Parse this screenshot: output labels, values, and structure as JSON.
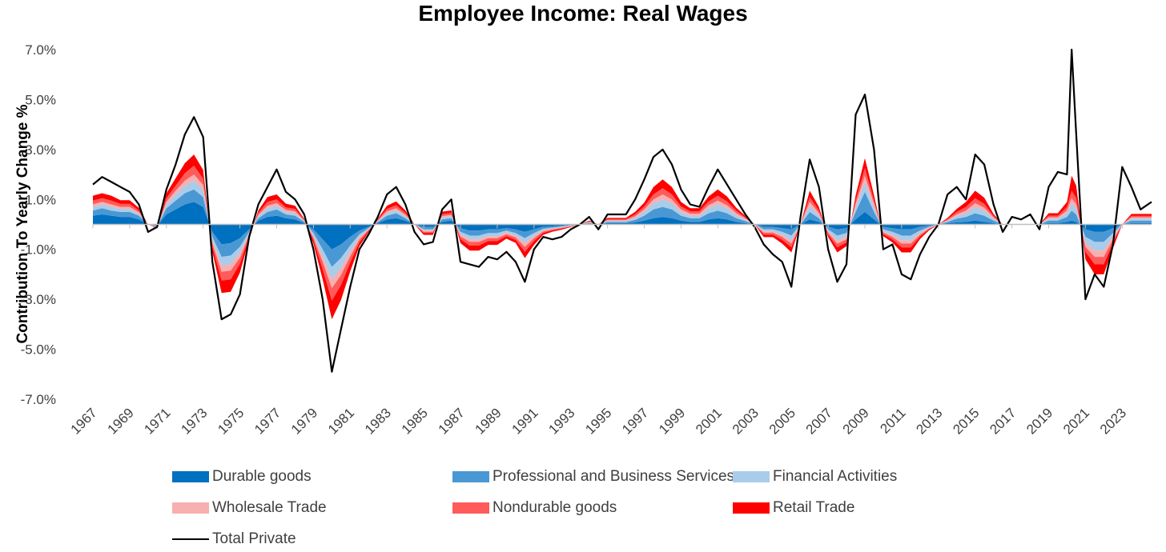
{
  "chart_data": {
    "type": "area",
    "title": "Employee Income: Real Wages",
    "xlabel": "",
    "ylabel": "Contribution To Yearly Change %",
    "ylim": [
      -7.0,
      7.0
    ],
    "y_ticks": [
      "7.0%",
      "5.0%",
      "3.0%",
      "1.0%",
      "-1.0%",
      "-3.0%",
      "-5.0%",
      "-7.0%"
    ],
    "y_tick_values": [
      7,
      5,
      3,
      1,
      -1,
      -3,
      -5,
      -7
    ],
    "x_ticks": [
      "1967",
      "1969",
      "1971",
      "1973",
      "1975",
      "1977",
      "1979",
      "1981",
      "1983",
      "1985",
      "1987",
      "1989",
      "1991",
      "1993",
      "1995",
      "1997",
      "1999",
      "2001",
      "2003",
      "2005",
      "2007",
      "2009",
      "2011",
      "2013",
      "2015",
      "2017",
      "2019",
      "2021",
      "2023"
    ],
    "x_range": [
      1967.0,
      2024.6
    ],
    "legend_placement": "bottom",
    "grid": false,
    "x": [
      1967.0,
      1967.5,
      1968.0,
      1968.5,
      1969.0,
      1969.5,
      1970.0,
      1970.5,
      1971.0,
      1971.5,
      1972.0,
      1972.5,
      1973.0,
      1973.5,
      1974.0,
      1974.5,
      1975.0,
      1975.5,
      1976.0,
      1976.5,
      1977.0,
      1977.5,
      1978.0,
      1978.5,
      1979.0,
      1979.5,
      1980.0,
      1980.5,
      1981.0,
      1981.5,
      1982.0,
      1982.5,
      1983.0,
      1983.5,
      1984.0,
      1984.5,
      1985.0,
      1985.5,
      1986.0,
      1986.5,
      1987.0,
      1987.5,
      1988.0,
      1988.5,
      1989.0,
      1989.5,
      1990.0,
      1990.5,
      1991.0,
      1991.5,
      1992.0,
      1992.5,
      1993.0,
      1993.5,
      1994.0,
      1994.5,
      1995.0,
      1995.5,
      1996.0,
      1996.5,
      1997.0,
      1997.5,
      1998.0,
      1998.5,
      1999.0,
      1999.5,
      2000.0,
      2000.5,
      2001.0,
      2001.5,
      2002.0,
      2002.5,
      2003.0,
      2003.5,
      2004.0,
      2004.5,
      2005.0,
      2005.5,
      2006.0,
      2006.5,
      2007.0,
      2007.5,
      2008.0,
      2008.5,
      2009.0,
      2009.5,
      2010.0,
      2010.5,
      2011.0,
      2011.5,
      2012.0,
      2012.5,
      2013.0,
      2013.5,
      2014.0,
      2014.5,
      2015.0,
      2015.5,
      2016.0,
      2016.5,
      2017.0,
      2017.5,
      2018.0,
      2018.5,
      2019.0,
      2019.5,
      2020.0,
      2020.25,
      2020.5,
      2021.0,
      2021.5,
      2022.0,
      2022.5,
      2023.0,
      2023.5,
      2024.0,
      2024.6
    ],
    "series": [
      {
        "name": "Durable goods",
        "color": "#0070C0",
        "values": [
          0.35,
          0.4,
          0.35,
          0.3,
          0.3,
          0.2,
          0.0,
          -0.05,
          0.4,
          0.6,
          0.8,
          0.9,
          0.7,
          -0.3,
          -0.8,
          -0.75,
          -0.55,
          -0.2,
          0.15,
          0.3,
          0.35,
          0.25,
          0.2,
          0.05,
          -0.2,
          -0.6,
          -1.0,
          -0.8,
          -0.5,
          -0.25,
          -0.1,
          0.05,
          0.2,
          0.25,
          0.15,
          0.0,
          -0.1,
          -0.1,
          0.1,
          0.15,
          -0.15,
          -0.25,
          -0.25,
          -0.2,
          -0.2,
          -0.15,
          -0.2,
          -0.3,
          -0.2,
          -0.1,
          -0.08,
          -0.05,
          -0.02,
          0.0,
          0.03,
          0.0,
          0.05,
          0.05,
          0.05,
          0.08,
          0.15,
          0.25,
          0.3,
          0.25,
          0.15,
          0.1,
          0.1,
          0.2,
          0.25,
          0.2,
          0.1,
          0.05,
          0.0,
          -0.1,
          -0.1,
          -0.15,
          -0.2,
          0.0,
          0.2,
          0.1,
          -0.1,
          -0.2,
          -0.15,
          0.2,
          0.5,
          0.2,
          -0.1,
          -0.15,
          -0.2,
          -0.2,
          -0.1,
          -0.05,
          0.0,
          0.05,
          0.08,
          0.1,
          0.15,
          0.1,
          0.05,
          0.0,
          0.0,
          0.0,
          0.0,
          0.0,
          0.05,
          0.05,
          0.1,
          0.15,
          0.1,
          -0.2,
          -0.3,
          -0.3,
          -0.15,
          0.0,
          0.05,
          0.05,
          0.05
        ]
      },
      {
        "name": "Professional and Business Services",
        "color": "#4A98D3",
        "values": [
          0.2,
          0.25,
          0.2,
          0.2,
          0.2,
          0.15,
          0.0,
          -0.03,
          0.25,
          0.35,
          0.45,
          0.5,
          0.4,
          -0.2,
          -0.5,
          -0.5,
          -0.35,
          -0.1,
          0.1,
          0.2,
          0.25,
          0.15,
          0.15,
          0.05,
          -0.15,
          -0.4,
          -0.7,
          -0.55,
          -0.35,
          -0.15,
          -0.05,
          0.05,
          0.15,
          0.2,
          0.1,
          0.0,
          -0.1,
          -0.1,
          0.1,
          0.1,
          -0.15,
          -0.2,
          -0.2,
          -0.15,
          -0.15,
          -0.1,
          -0.15,
          -0.25,
          -0.15,
          -0.08,
          -0.05,
          -0.04,
          -0.02,
          0.0,
          0.03,
          0.0,
          0.05,
          0.05,
          0.05,
          0.1,
          0.2,
          0.35,
          0.4,
          0.35,
          0.2,
          0.15,
          0.15,
          0.25,
          0.3,
          0.25,
          0.15,
          0.08,
          0.0,
          -0.1,
          -0.1,
          -0.15,
          -0.25,
          0.0,
          0.3,
          0.15,
          -0.1,
          -0.25,
          -0.2,
          0.3,
          0.8,
          0.3,
          -0.1,
          -0.15,
          -0.25,
          -0.25,
          -0.15,
          -0.05,
          0.0,
          0.05,
          0.15,
          0.2,
          0.3,
          0.25,
          0.1,
          0.0,
          0.0,
          0.0,
          0.0,
          0.0,
          0.1,
          0.1,
          0.2,
          0.4,
          0.3,
          -0.3,
          -0.4,
          -0.4,
          -0.2,
          0.0,
          0.1,
          0.1,
          0.1
        ]
      },
      {
        "name": "Financial Activities",
        "color": "#A9CCEA",
        "values": [
          0.15,
          0.15,
          0.15,
          0.12,
          0.12,
          0.08,
          0.0,
          -0.02,
          0.15,
          0.25,
          0.3,
          0.35,
          0.28,
          -0.15,
          -0.35,
          -0.35,
          -0.25,
          -0.08,
          0.08,
          0.15,
          0.15,
          0.1,
          0.1,
          0.03,
          -0.1,
          -0.3,
          -0.5,
          -0.4,
          -0.25,
          -0.12,
          -0.04,
          0.03,
          0.1,
          0.12,
          0.08,
          0.0,
          -0.05,
          -0.05,
          0.08,
          0.08,
          -0.1,
          -0.15,
          -0.15,
          -0.12,
          -0.12,
          -0.08,
          -0.1,
          -0.2,
          -0.12,
          -0.06,
          -0.04,
          -0.03,
          -0.02,
          0.0,
          0.02,
          0.0,
          0.04,
          0.04,
          0.04,
          0.08,
          0.15,
          0.25,
          0.3,
          0.25,
          0.15,
          0.1,
          0.1,
          0.2,
          0.25,
          0.2,
          0.12,
          0.06,
          0.0,
          -0.08,
          -0.08,
          -0.12,
          -0.2,
          0.0,
          0.25,
          0.12,
          -0.08,
          -0.2,
          -0.15,
          0.2,
          0.4,
          0.2,
          -0.08,
          -0.12,
          -0.2,
          -0.2,
          -0.1,
          -0.04,
          0.0,
          0.04,
          0.1,
          0.15,
          0.25,
          0.2,
          0.08,
          0.0,
          0.0,
          0.0,
          0.0,
          0.0,
          0.08,
          0.08,
          0.15,
          0.3,
          0.25,
          -0.25,
          -0.35,
          -0.35,
          -0.15,
          0.0,
          0.08,
          0.08,
          0.08
        ]
      },
      {
        "name": "Wholesale Trade",
        "color": "#F8AFAF",
        "values": [
          0.1,
          0.1,
          0.1,
          0.08,
          0.08,
          0.05,
          0.0,
          -0.02,
          0.1,
          0.15,
          0.2,
          0.25,
          0.2,
          -0.1,
          -0.25,
          -0.25,
          -0.18,
          -0.05,
          0.05,
          0.1,
          0.1,
          0.08,
          0.07,
          0.02,
          -0.08,
          -0.2,
          -0.35,
          -0.28,
          -0.18,
          -0.08,
          -0.03,
          0.02,
          0.07,
          0.08,
          0.05,
          0.0,
          -0.04,
          -0.04,
          0.05,
          0.05,
          -0.08,
          -0.1,
          -0.1,
          -0.08,
          -0.08,
          -0.06,
          -0.07,
          -0.15,
          -0.08,
          -0.04,
          -0.03,
          -0.02,
          -0.01,
          0.0,
          0.02,
          0.0,
          0.03,
          0.03,
          0.03,
          0.06,
          0.1,
          0.15,
          0.2,
          0.15,
          0.1,
          0.08,
          0.08,
          0.12,
          0.15,
          0.12,
          0.08,
          0.04,
          0.0,
          -0.05,
          -0.05,
          -0.08,
          -0.12,
          0.0,
          0.15,
          0.08,
          -0.05,
          -0.12,
          -0.1,
          0.12,
          0.25,
          0.12,
          -0.05,
          -0.08,
          -0.12,
          -0.12,
          -0.06,
          -0.02,
          0.0,
          0.03,
          0.07,
          0.1,
          0.15,
          0.12,
          0.05,
          0.0,
          0.0,
          0.0,
          0.0,
          0.0,
          0.05,
          0.05,
          0.1,
          0.2,
          0.15,
          -0.15,
          -0.25,
          -0.25,
          -0.1,
          0.0,
          0.05,
          0.05,
          0.05
        ]
      },
      {
        "name": "Nondurable goods",
        "color": "#FF5B5B",
        "values": [
          0.15,
          0.15,
          0.15,
          0.12,
          0.12,
          0.08,
          0.0,
          -0.02,
          0.15,
          0.2,
          0.3,
          0.35,
          0.25,
          -0.15,
          -0.35,
          -0.35,
          -0.25,
          -0.08,
          0.08,
          0.15,
          0.15,
          0.1,
          0.1,
          0.03,
          -0.1,
          -0.3,
          -0.5,
          -0.4,
          -0.25,
          -0.12,
          -0.04,
          0.03,
          0.1,
          0.12,
          0.08,
          0.0,
          -0.05,
          -0.05,
          0.08,
          0.08,
          -0.12,
          -0.15,
          -0.15,
          -0.12,
          -0.12,
          -0.08,
          -0.1,
          -0.2,
          -0.12,
          -0.06,
          -0.04,
          -0.03,
          -0.02,
          0.0,
          0.02,
          0.0,
          0.04,
          0.04,
          0.04,
          0.08,
          0.12,
          0.2,
          0.25,
          0.2,
          0.12,
          0.1,
          0.1,
          0.15,
          0.2,
          0.15,
          0.1,
          0.05,
          0.0,
          -0.08,
          -0.08,
          -0.12,
          -0.15,
          0.0,
          0.2,
          0.1,
          -0.08,
          -0.15,
          -0.12,
          0.15,
          0.3,
          0.15,
          -0.06,
          -0.1,
          -0.15,
          -0.15,
          -0.08,
          -0.03,
          0.0,
          0.04,
          0.1,
          0.15,
          0.2,
          0.15,
          0.06,
          0.0,
          0.0,
          0.0,
          0.0,
          0.0,
          0.07,
          0.07,
          0.15,
          0.3,
          0.25,
          -0.2,
          -0.3,
          -0.3,
          -0.15,
          0.0,
          0.06,
          0.06,
          0.06
        ]
      },
      {
        "name": "Retail Trade",
        "color": "#FF0000",
        "values": [
          0.2,
          0.2,
          0.2,
          0.15,
          0.15,
          0.1,
          0.0,
          -0.03,
          0.2,
          0.3,
          0.4,
          0.45,
          0.35,
          -0.2,
          -0.5,
          -0.5,
          -0.35,
          -0.1,
          0.1,
          0.2,
          0.2,
          0.15,
          0.13,
          0.04,
          -0.15,
          -0.4,
          -0.75,
          -0.6,
          -0.35,
          -0.15,
          -0.05,
          0.04,
          0.13,
          0.15,
          0.1,
          0.0,
          -0.08,
          -0.08,
          0.1,
          0.1,
          -0.15,
          -0.2,
          -0.2,
          -0.15,
          -0.15,
          -0.1,
          -0.12,
          -0.25,
          -0.15,
          -0.08,
          -0.05,
          -0.04,
          -0.02,
          0.0,
          0.03,
          0.0,
          0.05,
          0.05,
          0.05,
          0.1,
          0.15,
          0.3,
          0.35,
          0.3,
          0.18,
          0.12,
          0.12,
          0.2,
          0.25,
          0.2,
          0.12,
          0.06,
          0.0,
          -0.1,
          -0.1,
          -0.15,
          -0.2,
          0.0,
          0.25,
          0.15,
          -0.1,
          -0.2,
          -0.15,
          0.2,
          0.4,
          0.2,
          -0.08,
          -0.12,
          -0.2,
          -0.2,
          -0.1,
          -0.04,
          0.0,
          0.05,
          0.12,
          0.2,
          0.3,
          0.25,
          0.08,
          0.0,
          0.0,
          0.0,
          0.0,
          0.0,
          0.1,
          0.1,
          0.2,
          0.6,
          0.5,
          -0.3,
          -0.4,
          -0.4,
          -0.2,
          0.0,
          0.08,
          0.08,
          0.08
        ]
      },
      {
        "name": "Total Private",
        "color": "#000000",
        "values": [
          1.6,
          1.9,
          1.7,
          1.5,
          1.3,
          0.8,
          -0.3,
          -0.1,
          1.4,
          2.4,
          3.6,
          4.3,
          3.5,
          -1.5,
          -3.8,
          -3.6,
          -2.8,
          -0.5,
          0.8,
          1.5,
          2.2,
          1.3,
          1.0,
          0.4,
          -1.0,
          -3.0,
          -5.9,
          -4.2,
          -2.5,
          -1.0,
          -0.4,
          0.3,
          1.2,
          1.5,
          0.8,
          -0.3,
          -0.8,
          -0.7,
          0.6,
          1.0,
          -1.5,
          -1.6,
          -1.7,
          -1.3,
          -1.4,
          -1.1,
          -1.5,
          -2.3,
          -1.0,
          -0.5,
          -0.6,
          -0.5,
          -0.2,
          0.0,
          0.3,
          -0.2,
          0.4,
          0.4,
          0.4,
          1.0,
          1.8,
          2.7,
          3.0,
          2.4,
          1.4,
          0.8,
          0.7,
          1.5,
          2.2,
          1.6,
          1.0,
          0.4,
          -0.1,
          -0.8,
          -1.2,
          -1.5,
          -2.5,
          0.3,
          2.6,
          1.5,
          -1.0,
          -2.3,
          -1.6,
          4.4,
          5.2,
          3.0,
          -1.0,
          -0.8,
          -2.0,
          -2.2,
          -1.2,
          -0.5,
          0.0,
          1.2,
          1.5,
          1.0,
          2.8,
          2.4,
          0.8,
          -0.3,
          0.3,
          0.2,
          0.4,
          -0.2,
          1.5,
          2.1,
          2.0,
          7.0,
          3.6,
          -3.0,
          -2.0,
          -2.5,
          -0.8,
          2.3,
          1.5,
          0.6,
          0.9
        ]
      }
    ]
  }
}
